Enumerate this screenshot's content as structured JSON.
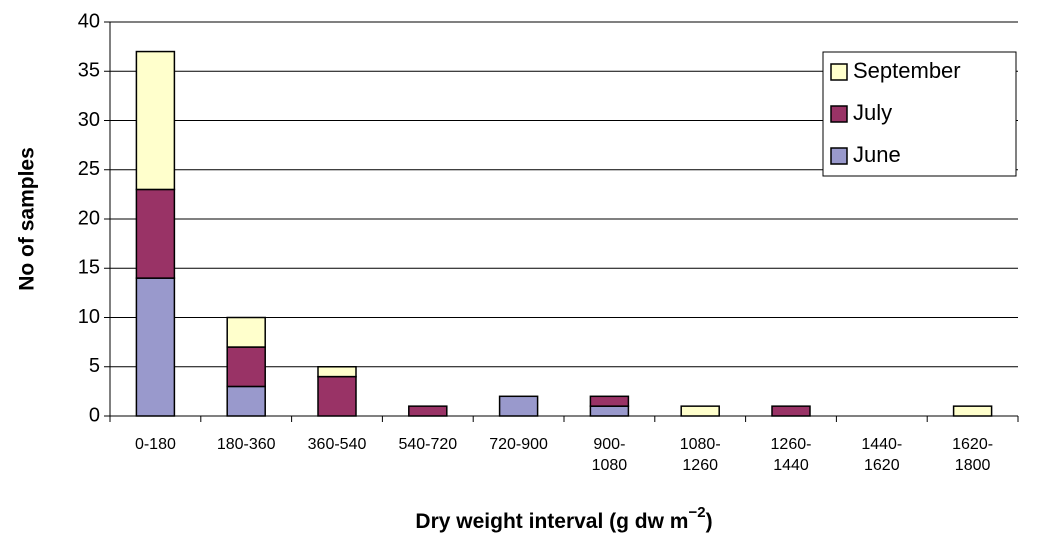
{
  "chart_data": {
    "type": "stacked_bar",
    "xlabel": "Dry weight interval (g dw m",
    "xlabel_sup": "−2",
    "xlabel_end": ")",
    "ylabel": "No of samples",
    "categories": [
      "0-180",
      "180-360",
      "360-540",
      "540-720",
      "720-900",
      "900-\n1080",
      "1080-\n1260",
      "1260-\n1440",
      "1440-\n1620",
      "1620-\n1800"
    ],
    "series": [
      {
        "name": "June",
        "color": "#9999cc",
        "values": [
          14,
          3,
          0,
          0,
          2,
          1,
          0,
          0,
          0,
          0
        ]
      },
      {
        "name": "July",
        "color": "#993366",
        "values": [
          9,
          4,
          4,
          1,
          0,
          1,
          0,
          1,
          0,
          0
        ]
      },
      {
        "name": "September",
        "color": "#ffffcc",
        "values": [
          14,
          3,
          1,
          0,
          0,
          0,
          1,
          0,
          0,
          1
        ]
      }
    ],
    "ylim": [
      0,
      40
    ],
    "yticks": [
      0,
      5,
      10,
      15,
      20,
      25,
      30,
      35,
      40
    ],
    "grid": true,
    "legend": "upper right"
  }
}
